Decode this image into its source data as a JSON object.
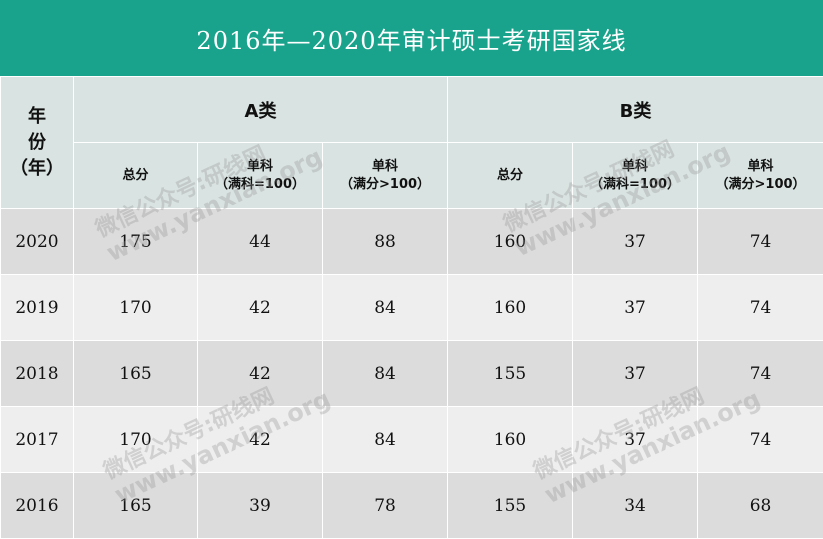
{
  "title": "2016年—2020年审计硕士考研国家线",
  "header": {
    "year_label": [
      "年",
      "份",
      "（年）"
    ],
    "group_a": "A类",
    "group_b": "B类",
    "sub": [
      {
        "lines": [
          "总分"
        ]
      },
      {
        "lines": [
          "单科",
          "（满科=100）"
        ]
      },
      {
        "lines": [
          "单科",
          "（满分>100）"
        ]
      },
      {
        "lines": [
          "总分"
        ]
      },
      {
        "lines": [
          "单科",
          "（满科=100）"
        ]
      },
      {
        "lines": [
          "单科",
          "（满分>100）"
        ]
      }
    ]
  },
  "rows": [
    {
      "year": "2020",
      "values": [
        "175",
        "44",
        "88",
        "160",
        "37",
        "74"
      ]
    },
    {
      "year": "2019",
      "values": [
        "170",
        "42",
        "84",
        "160",
        "37",
        "74"
      ]
    },
    {
      "year": "2018",
      "values": [
        "165",
        "42",
        "84",
        "155",
        "37",
        "74"
      ]
    },
    {
      "year": "2017",
      "values": [
        "170",
        "42",
        "84",
        "160",
        "37",
        "74"
      ]
    },
    {
      "year": "2016",
      "values": [
        "165",
        "39",
        "78",
        "155",
        "34",
        "68"
      ]
    }
  ],
  "watermark": {
    "line1": "微信公众号:研线网",
    "line2": "www.yanxian.org"
  },
  "colors": {
    "title_bg": "#1aa38c",
    "header_bg": "#d9e3e1",
    "row_dark": "#dcdcdc",
    "row_light": "#eeeeee"
  }
}
